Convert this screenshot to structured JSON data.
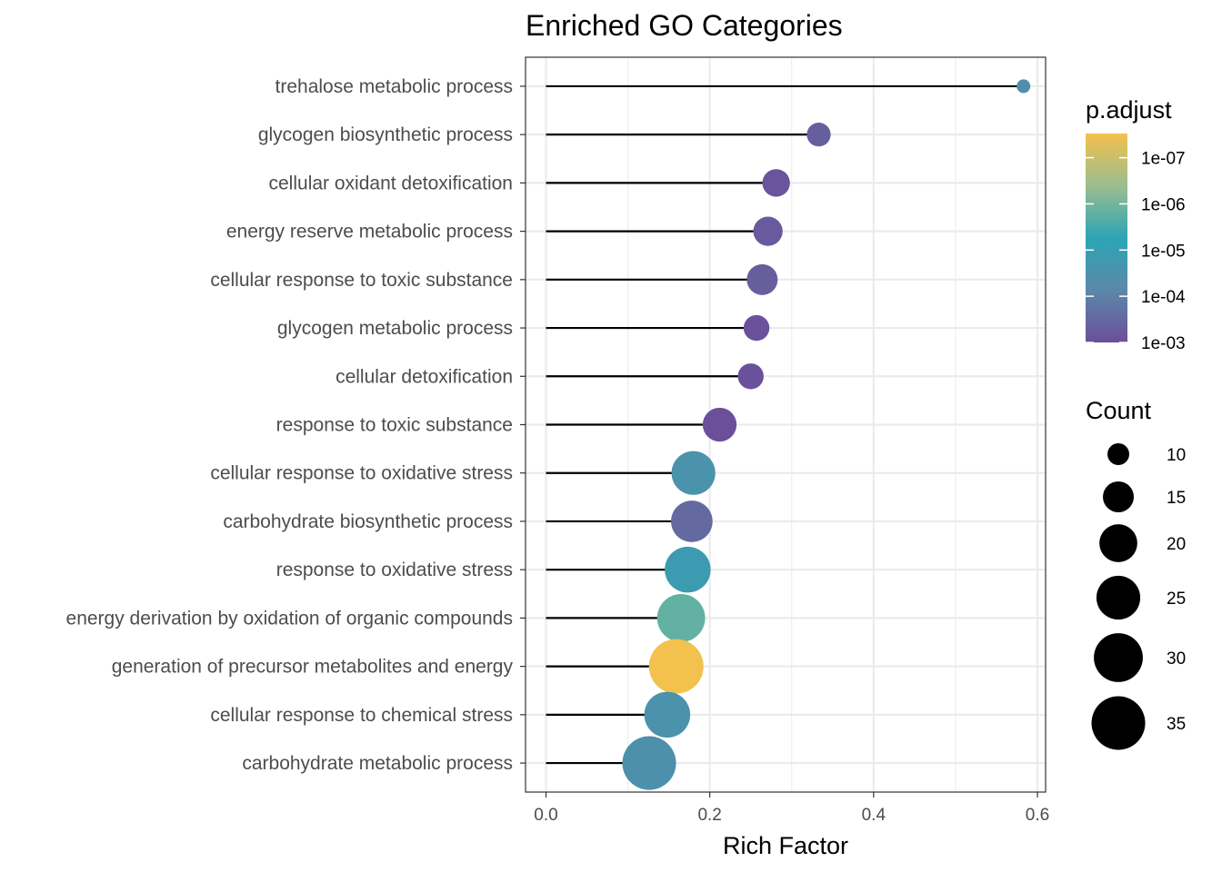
{
  "chart_data": {
    "type": "scatter",
    "title": "Enriched GO Categories",
    "xlabel": "Rich Factor",
    "ylabel": "",
    "xlim": [
      -0.025,
      0.61
    ],
    "x_ticks": [
      0.0,
      0.2,
      0.4,
      0.6
    ],
    "x_tick_labels": [
      "0.0",
      "0.2",
      "0.4",
      "0.6"
    ],
    "grid": true,
    "categories": [
      "trehalose metabolic process",
      "glycogen biosynthetic process",
      "cellular oxidant detoxification",
      "energy reserve metabolic process",
      "cellular response to toxic substance",
      "glycogen metabolic process",
      "cellular detoxification",
      "response to toxic substance",
      "cellular response to oxidative stress",
      "carbohydrate biosynthetic process",
      "response to oxidative stress",
      "energy derivation by oxidation of organic compounds",
      "generation of precursor metabolites and energy",
      "cellular response to chemical stress",
      "carbohydrate metabolic process"
    ],
    "rich_factor": [
      0.583,
      0.333,
      0.281,
      0.271,
      0.264,
      0.257,
      0.25,
      0.212,
      0.18,
      0.178,
      0.173,
      0.165,
      0.159,
      0.148,
      0.126
    ],
    "count": [
      7,
      11,
      13,
      14,
      15,
      12,
      12,
      17,
      25,
      23,
      27,
      29,
      36,
      27,
      35
    ],
    "p_adjust": [
      4e-05,
      0.0005,
      0.0008,
      0.0006,
      0.0005,
      0.0009,
      0.0009,
      0.001,
      3e-05,
      0.0003,
      1.3e-05,
      1.5e-06,
      3e-08,
      3e-05,
      3.5e-05
    ],
    "color_legend": {
      "title": "p.adjust",
      "labels": [
        "1e-07",
        "1e-06",
        "1e-05",
        "1e-04",
        "1e-03"
      ],
      "values": [
        1e-07,
        1e-06,
        1e-05,
        0.0001,
        0.001
      ],
      "range": [
        3e-08,
        0.001
      ],
      "colors": [
        "#f2c14e",
        "#9bbd8f",
        "#2ca5b5",
        "#5b88a8",
        "#6b4f9a"
      ],
      "placement": "right"
    },
    "size_legend": {
      "title": "Count",
      "values": [
        10,
        15,
        20,
        25,
        30,
        35
      ],
      "labels": [
        "10",
        "15",
        "20",
        "25",
        "30",
        "35"
      ],
      "placement": "right"
    },
    "colors": {
      "segment": "#000000",
      "grid": "#ebebeb",
      "panel_border": "#333333"
    }
  }
}
